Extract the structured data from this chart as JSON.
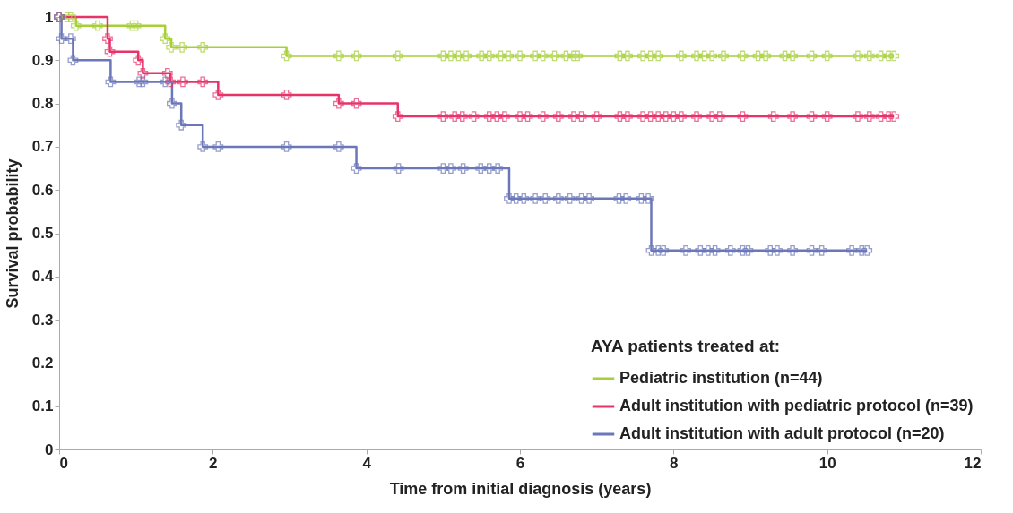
{
  "chart_data": {
    "type": "step",
    "xlabel": "Time from initial diagnosis (years)",
    "ylabel": "Survival probability",
    "legend_title": "AYA patients treated at:",
    "legend": "bottom right",
    "marker": "cross",
    "line_style": "solid",
    "grid": false,
    "xlim": [
      0,
      12
    ],
    "xticks": [
      0,
      2,
      4,
      6,
      8,
      10,
      12
    ],
    "ylim": [
      0,
      1
    ],
    "yticks": [
      0,
      0.1,
      0.2,
      0.3,
      0.4,
      0.5,
      0.6,
      0.7,
      0.8,
      0.9,
      1
    ],
    "series": [
      {
        "name": "Pediatric institution (n=44)",
        "color": "#a6cf38",
        "x": [
          0,
          0.1,
          0.15,
          0.22,
          0.5,
          0.95,
          1.0,
          1.38,
          1.46,
          1.6,
          1.87,
          2.96,
          3.64,
          3.87,
          4.41,
          5.0,
          5.1,
          5.2,
          5.3,
          5.5,
          5.6,
          5.75,
          5.85,
          6.0,
          6.2,
          6.3,
          6.45,
          6.6,
          6.7,
          6.75,
          7.3,
          7.4,
          7.6,
          7.7,
          7.8,
          8.1,
          8.3,
          8.4,
          8.5,
          8.65,
          8.9,
          9.1,
          9.2,
          9.45,
          9.55,
          9.8,
          10.0,
          10.4,
          10.55,
          10.7,
          10.8,
          10.87
        ],
        "values": [
          1,
          1,
          1,
          0.98,
          0.98,
          0.98,
          0.98,
          0.95,
          0.93,
          0.93,
          0.93,
          0.91,
          0.91,
          0.91,
          0.91,
          0.91,
          0.91,
          0.91,
          0.91,
          0.91,
          0.91,
          0.91,
          0.91,
          0.91,
          0.91,
          0.91,
          0.91,
          0.91,
          0.91,
          0.91,
          0.91,
          0.91,
          0.91,
          0.91,
          0.91,
          0.91,
          0.91,
          0.91,
          0.91,
          0.91,
          0.91,
          0.91,
          0.91,
          0.91,
          0.91,
          0.91,
          0.91,
          0.91,
          0.91,
          0.91,
          0.91,
          0.91
        ]
      },
      {
        "name": "Adult institution with pediatric protocol (n=39)",
        "color": "#e8336a",
        "x": [
          0,
          0.63,
          0.66,
          1.03,
          1.09,
          1.41,
          1.45,
          1.61,
          1.87,
          2.07,
          2.96,
          3.64,
          3.87,
          4.41,
          5.0,
          5.15,
          5.25,
          5.4,
          5.6,
          5.7,
          5.8,
          6.0,
          6.1,
          6.3,
          6.5,
          6.7,
          6.8,
          7.0,
          7.3,
          7.4,
          7.6,
          7.7,
          7.8,
          7.9,
          8.0,
          8.1,
          8.3,
          8.5,
          8.6,
          8.9,
          9.3,
          9.55,
          9.8,
          10.0,
          10.4,
          10.55,
          10.7,
          10.8,
          10.87
        ],
        "values": [
          1,
          0.95,
          0.92,
          0.9,
          0.87,
          0.87,
          0.85,
          0.85,
          0.85,
          0.82,
          0.82,
          0.8,
          0.8,
          0.77,
          0.77,
          0.77,
          0.77,
          0.77,
          0.77,
          0.77,
          0.77,
          0.77,
          0.77,
          0.77,
          0.77,
          0.77,
          0.77,
          0.77,
          0.77,
          0.77,
          0.77,
          0.77,
          0.77,
          0.77,
          0.77,
          0.77,
          0.77,
          0.77,
          0.77,
          0.77,
          0.77,
          0.77,
          0.77,
          0.77,
          0.77,
          0.77,
          0.77,
          0.77,
          0.77
        ]
      },
      {
        "name": "Adult institution with adult protocol (n=20)",
        "color": "#6b77b8",
        "x": [
          0,
          0.03,
          0.15,
          0.18,
          0.67,
          1.04,
          1.09,
          1.38,
          1.47,
          1.59,
          1.87,
          2.07,
          2.96,
          3.64,
          3.87,
          4.42,
          5.0,
          5.1,
          5.26,
          5.49,
          5.6,
          5.71,
          5.86,
          5.95,
          6.05,
          6.2,
          6.33,
          6.5,
          6.65,
          6.8,
          6.9,
          7.29,
          7.38,
          7.58,
          7.67,
          7.71,
          7.8,
          7.87,
          8.16,
          8.35,
          8.45,
          8.54,
          8.74,
          8.9,
          8.97,
          9.26,
          9.35,
          9.55,
          9.8,
          9.93,
          10.32,
          10.45,
          10.52
        ],
        "values": [
          1,
          0.95,
          0.95,
          0.9,
          0.85,
          0.85,
          0.85,
          0.85,
          0.8,
          0.75,
          0.7,
          0.7,
          0.7,
          0.7,
          0.65,
          0.65,
          0.65,
          0.65,
          0.65,
          0.65,
          0.65,
          0.65,
          0.58,
          0.58,
          0.58,
          0.58,
          0.58,
          0.58,
          0.58,
          0.58,
          0.58,
          0.58,
          0.58,
          0.58,
          0.58,
          0.46,
          0.46,
          0.46,
          0.46,
          0.46,
          0.46,
          0.46,
          0.46,
          0.46,
          0.46,
          0.46,
          0.46,
          0.46,
          0.46,
          0.46,
          0.46,
          0.46,
          0.46
        ]
      }
    ]
  }
}
